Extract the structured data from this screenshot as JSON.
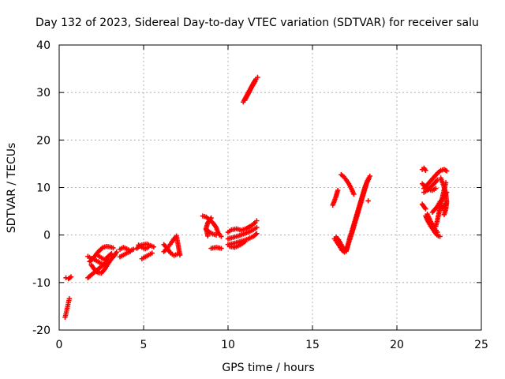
{
  "chart_data": {
    "type": "scatter",
    "title": "Day 132 of 2023, Sidereal Day-to-day VTEC variation (SDTVAR) for receiver salu",
    "xlabel": "GPS time / hours",
    "ylabel": "SDTVAR / TECUs",
    "xlim": [
      0,
      25
    ],
    "ylim": [
      -20,
      40
    ],
    "xticks": [
      0,
      5,
      10,
      15,
      20,
      25
    ],
    "yticks": [
      -20,
      -10,
      0,
      10,
      20,
      30,
      40
    ],
    "xtick_labels": [
      "0",
      "5",
      "10",
      "15",
      "20",
      "25"
    ],
    "ytick_labels": [
      "-20",
      "-10",
      "0",
      "10",
      "20",
      "30",
      "40"
    ],
    "grid": true,
    "marker": "+",
    "color": "#ff0000",
    "series": [
      {
        "name": "SDTVAR",
        "segments": [
          [
            [
              0.35,
              -17.3
            ],
            [
              0.4,
              -16.6
            ],
            [
              0.45,
              -15.8
            ],
            [
              0.5,
              -15.0
            ],
            [
              0.55,
              -14.2
            ],
            [
              0.6,
              -13.4
            ]
          ],
          [
            [
              0.4,
              -9.0
            ],
            [
              0.55,
              -9.2
            ],
            [
              0.7,
              -8.8
            ]
          ],
          [
            [
              1.7,
              -9.0
            ],
            [
              1.9,
              -8.4
            ],
            [
              2.1,
              -7.8
            ],
            [
              2.3,
              -7.2
            ],
            [
              2.5,
              -6.6
            ],
            [
              2.7,
              -6.0
            ],
            [
              2.9,
              -5.4
            ]
          ],
          [
            [
              1.7,
              -4.5
            ],
            [
              1.9,
              -4.9
            ],
            [
              2.1,
              -5.2
            ],
            [
              2.3,
              -5.6
            ],
            [
              2.5,
              -6.0
            ],
            [
              2.7,
              -6.3
            ]
          ],
          [
            [
              1.8,
              -5.6
            ],
            [
              2.0,
              -5.0
            ],
            [
              2.2,
              -4.0
            ],
            [
              2.4,
              -3.2
            ],
            [
              2.6,
              -2.6
            ],
            [
              2.8,
              -2.4
            ],
            [
              3.0,
              -2.5
            ],
            [
              3.2,
              -2.7
            ]
          ],
          [
            [
              1.9,
              -6.3
            ],
            [
              2.1,
              -7.3
            ],
            [
              2.3,
              -7.9
            ],
            [
              2.5,
              -8.0
            ],
            [
              2.7,
              -7.2
            ],
            [
              2.9,
              -6.0
            ],
            [
              3.1,
              -5.0
            ],
            [
              3.3,
              -4.2
            ],
            [
              3.4,
              -3.6
            ]
          ],
          [
            [
              2.3,
              -4.3
            ],
            [
              2.5,
              -4.8
            ],
            [
              2.7,
              -5.2
            ],
            [
              2.9,
              -4.5
            ],
            [
              3.1,
              -3.9
            ]
          ],
          [
            [
              3.6,
              -3.0
            ],
            [
              3.8,
              -2.6
            ],
            [
              4.0,
              -2.9
            ],
            [
              4.2,
              -3.3
            ],
            [
              4.4,
              -3.0
            ]
          ],
          [
            [
              3.6,
              -4.6
            ],
            [
              3.8,
              -4.2
            ],
            [
              4.0,
              -3.8
            ],
            [
              4.2,
              -3.5
            ]
          ],
          [
            [
              4.6,
              -2.8
            ],
            [
              4.8,
              -2.2
            ],
            [
              5.0,
              -2.0
            ],
            [
              5.2,
              -1.9
            ],
            [
              5.4,
              -2.2
            ],
            [
              5.6,
              -2.5
            ]
          ],
          [
            [
              4.9,
              -5.0
            ],
            [
              5.1,
              -4.6
            ],
            [
              5.3,
              -4.2
            ],
            [
              5.5,
              -3.8
            ]
          ],
          [
            [
              4.7,
              -2.1
            ],
            [
              4.9,
              -2.6
            ],
            [
              5.1,
              -2.9
            ],
            [
              5.3,
              -2.5
            ]
          ],
          [
            [
              6.2,
              -3.5
            ],
            [
              6.35,
              -3.0
            ],
            [
              6.5,
              -2.3
            ],
            [
              6.65,
              -1.6
            ],
            [
              6.8,
              -0.8
            ],
            [
              6.95,
              -0.2
            ],
            [
              7.05,
              -2.2
            ],
            [
              7.1,
              -3.2
            ],
            [
              7.15,
              -4.2
            ]
          ],
          [
            [
              6.2,
              -2.0
            ],
            [
              6.4,
              -2.8
            ],
            [
              6.6,
              -3.8
            ],
            [
              6.8,
              -4.3
            ],
            [
              7.0,
              -4.0
            ]
          ],
          [
            [
              8.5,
              4.0
            ],
            [
              8.7,
              3.8
            ],
            [
              8.9,
              3.2
            ],
            [
              9.1,
              2.6
            ],
            [
              9.3,
              1.6
            ],
            [
              9.4,
              0.6
            ],
            [
              9.5,
              0.0
            ],
            [
              9.6,
              -0.3
            ]
          ],
          [
            [
              8.7,
              1.2
            ],
            [
              8.9,
              0.6
            ],
            [
              9.1,
              0.2
            ],
            [
              9.3,
              0.0
            ]
          ],
          [
            [
              8.8,
              -0.2
            ],
            [
              8.7,
              1.4
            ],
            [
              8.8,
              2.6
            ],
            [
              9.0,
              3.6
            ]
          ],
          [
            [
              9.0,
              -2.8
            ],
            [
              9.3,
              -2.6
            ],
            [
              9.6,
              -2.8
            ]
          ],
          [
            [
              10.0,
              -2.0
            ],
            [
              10.3,
              -1.8
            ],
            [
              10.6,
              -1.5
            ],
            [
              10.9,
              -1.2
            ],
            [
              11.2,
              -0.8
            ],
            [
              11.5,
              -0.3
            ],
            [
              11.7,
              0.3
            ]
          ],
          [
            [
              10.0,
              -0.8
            ],
            [
              10.3,
              -0.5
            ],
            [
              10.6,
              -0.2
            ],
            [
              10.9,
              0.2
            ],
            [
              11.2,
              0.6
            ],
            [
              11.5,
              1.1
            ],
            [
              11.7,
              1.6
            ]
          ],
          [
            [
              10.0,
              0.6
            ],
            [
              10.2,
              1.1
            ],
            [
              10.5,
              1.3
            ],
            [
              10.8,
              1.0
            ],
            [
              11.1,
              1.4
            ],
            [
              11.4,
              2.0
            ],
            [
              11.6,
              2.6
            ],
            [
              11.7,
              3.0
            ]
          ],
          [
            [
              10.1,
              -2.4
            ],
            [
              10.4,
              -2.6
            ],
            [
              10.7,
              -2.1
            ],
            [
              11.0,
              -1.4
            ]
          ],
          [
            [
              10.9,
              28.0
            ],
            [
              11.05,
              29.0
            ],
            [
              11.2,
              30.0
            ],
            [
              11.35,
              31.0
            ],
            [
              11.5,
              32.0
            ],
            [
              11.65,
              32.8
            ],
            [
              11.75,
              33.2
            ]
          ],
          [
            [
              11.0,
              28.4
            ],
            [
              11.15,
              29.4
            ],
            [
              11.3,
              30.4
            ],
            [
              11.45,
              31.4
            ],
            [
              11.6,
              32.3
            ]
          ],
          [
            [
              16.3,
              -0.8
            ],
            [
              16.45,
              -1.5
            ],
            [
              16.6,
              -2.3
            ],
            [
              16.75,
              -3.2
            ],
            [
              16.9,
              -3.6
            ],
            [
              17.0,
              -3.4
            ],
            [
              17.1,
              -2.2
            ],
            [
              17.2,
              -0.6
            ],
            [
              17.35,
              1.0
            ],
            [
              17.5,
              2.8
            ],
            [
              17.65,
              4.6
            ],
            [
              17.8,
              6.4
            ],
            [
              17.95,
              8.2
            ],
            [
              18.1,
              10.0
            ],
            [
              18.25,
              11.4
            ],
            [
              18.4,
              12.4
            ]
          ],
          [
            [
              16.4,
              -0.4
            ],
            [
              16.55,
              -1.0
            ],
            [
              16.7,
              -2.0
            ],
            [
              16.85,
              -2.9
            ],
            [
              17.0,
              -3.2
            ],
            [
              17.15,
              -1.6
            ],
            [
              17.3,
              0.0
            ],
            [
              17.45,
              1.8
            ],
            [
              17.6,
              3.6
            ],
            [
              17.75,
              5.4
            ],
            [
              17.9,
              7.2
            ],
            [
              18.05,
              9.0
            ],
            [
              18.2,
              10.8
            ],
            [
              18.35,
              12.0
            ]
          ],
          [
            [
              16.2,
              6.3
            ],
            [
              16.3,
              7.2
            ],
            [
              16.4,
              8.2
            ],
            [
              16.5,
              9.4
            ]
          ],
          [
            [
              16.7,
              12.7
            ],
            [
              16.85,
              12.3
            ],
            [
              17.0,
              11.6
            ],
            [
              17.15,
              10.8
            ],
            [
              17.3,
              9.8
            ],
            [
              17.45,
              8.6
            ]
          ],
          [
            [
              18.3,
              7.2
            ]
          ],
          [
            [
              21.5,
              13.8
            ],
            [
              21.6,
              14.1
            ],
            [
              21.7,
              13.6
            ]
          ],
          [
            [
              21.6,
              9.8
            ],
            [
              21.8,
              10.6
            ],
            [
              22.0,
              11.4
            ],
            [
              22.2,
              12.2
            ],
            [
              22.4,
              13.0
            ],
            [
              22.6,
              13.6
            ],
            [
              22.8,
              13.8
            ],
            [
              22.95,
              13.5
            ]
          ],
          [
            [
              21.5,
              10.8
            ],
            [
              21.7,
              10.1
            ],
            [
              21.9,
              9.6
            ],
            [
              22.1,
              9.4
            ],
            [
              22.3,
              9.8
            ]
          ],
          [
            [
              21.6,
              9.0
            ],
            [
              21.8,
              9.4
            ],
            [
              22.0,
              10.1
            ],
            [
              22.2,
              10.8
            ],
            [
              22.4,
              11.6
            ]
          ],
          [
            [
              21.5,
              6.5
            ],
            [
              21.6,
              6.0
            ],
            [
              21.7,
              5.5
            ]
          ],
          [
            [
              21.7,
              4.0
            ],
            [
              21.85,
              2.8
            ],
            [
              22.0,
              1.9
            ],
            [
              22.15,
              1.1
            ],
            [
              22.3,
              0.3
            ],
            [
              22.45,
              -0.2
            ],
            [
              22.55,
              -0.3
            ]
          ],
          [
            [
              21.8,
              4.4
            ],
            [
              21.95,
              3.2
            ],
            [
              22.1,
              2.2
            ],
            [
              22.25,
              1.3
            ],
            [
              22.4,
              0.6
            ]
          ],
          [
            [
              22.3,
              1.8
            ],
            [
              22.4,
              3.2
            ],
            [
              22.5,
              4.8
            ],
            [
              22.6,
              6.4
            ],
            [
              22.7,
              8.0
            ],
            [
              22.8,
              9.6
            ],
            [
              22.9,
              11.0
            ]
          ],
          [
            [
              22.4,
              6.0
            ],
            [
              22.55,
              7.0
            ],
            [
              22.7,
              7.6
            ],
            [
              22.85,
              8.3
            ],
            [
              22.95,
              9.0
            ]
          ],
          [
            [
              22.1,
              4.8
            ],
            [
              22.3,
              5.6
            ],
            [
              22.5,
              6.4
            ],
            [
              22.7,
              5.6
            ],
            [
              22.9,
              6.6
            ]
          ],
          [
            [
              22.6,
              12.0
            ],
            [
              22.7,
              11.0
            ],
            [
              22.8,
              10.0
            ],
            [
              22.9,
              8.5
            ],
            [
              22.95,
              7.0
            ],
            [
              22.9,
              5.5
            ],
            [
              22.8,
              4.3
            ]
          ]
        ]
      }
    ]
  }
}
